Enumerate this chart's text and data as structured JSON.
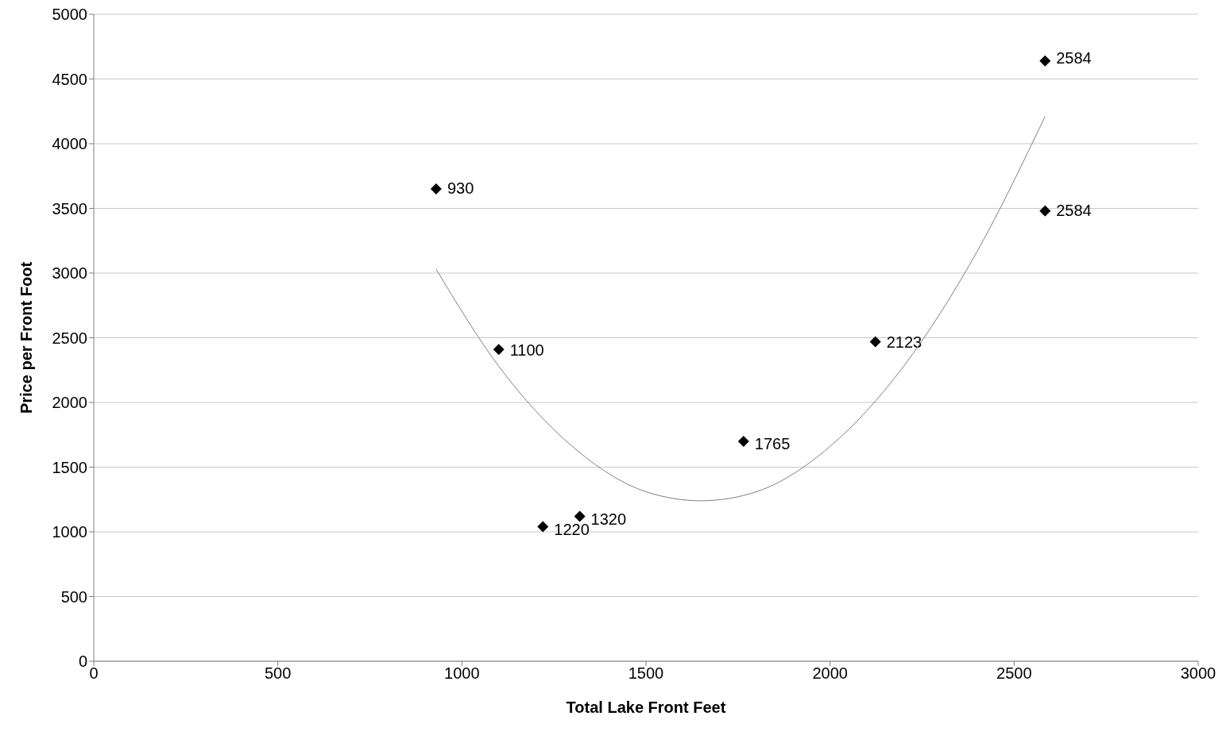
{
  "chart_data": {
    "type": "scatter",
    "xlabel": "Total Lake Front Feet",
    "ylabel": "Price per Front Foot",
    "xlim": [
      0,
      3000
    ],
    "xticks": [
      0,
      500,
      1000,
      1500,
      2000,
      2500,
      3000
    ],
    "ylim": [
      0,
      5000
    ],
    "yticks": [
      0,
      500,
      1000,
      1500,
      2000,
      2500,
      3000,
      3500,
      4000,
      4500,
      5000
    ],
    "grid": "y",
    "annotations": [
      {
        "text": "930",
        "x": 930,
        "y": 3650
      },
      {
        "text": "1100",
        "x": 1100,
        "y": 2410
      },
      {
        "text": "1220",
        "x": 1220,
        "y": 1040
      },
      {
        "text": "1320",
        "x": 1320,
        "y": 1120
      },
      {
        "text": "1765",
        "x": 1765,
        "y": 1700
      },
      {
        "text": "2123",
        "x": 2123,
        "y": 2470
      },
      {
        "text": "2584",
        "x": 2584,
        "y": 4640
      },
      {
        "text": "2584",
        "x": 2584,
        "y": 3480
      }
    ],
    "series": [
      {
        "color": "#000000",
        "marker": "diamond",
        "x": [
          930,
          1100,
          1220,
          1320,
          1765,
          2123,
          2584,
          2584
        ],
        "values": [
          3650,
          2410,
          1040,
          1120,
          1700,
          2470,
          4640,
          3480
        ]
      },
      {
        "type": "line",
        "color": "#808080",
        "x": [
          930,
          1100,
          1300,
          1500,
          1650,
          1800,
          2000,
          2200,
          2400,
          2584
        ],
        "values": [
          3030,
          2280,
          1660,
          1310,
          1240,
          1310,
          1660,
          2280,
          3170,
          4210
        ]
      }
    ]
  }
}
